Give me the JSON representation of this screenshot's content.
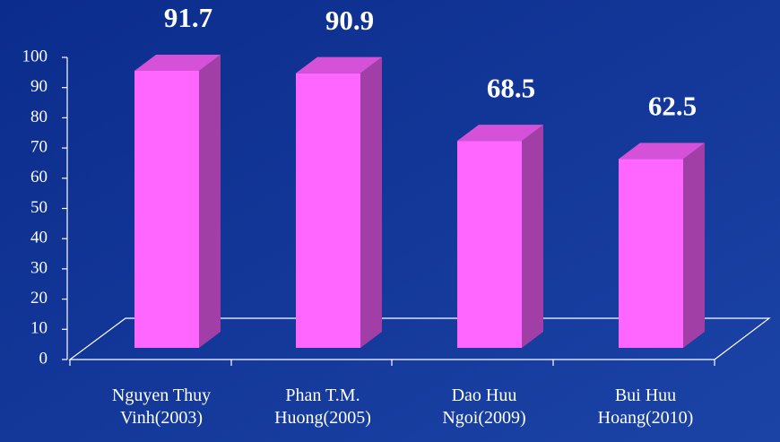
{
  "chart_data": {
    "type": "bar3d",
    "categories": [
      [
        "Nguyen Thuy",
        "Vinh(2003)"
      ],
      [
        "Phan T.M.",
        "Huong(2005)"
      ],
      [
        "Dao Huu",
        "Ngoi(2009)"
      ],
      [
        "Bui Huu",
        "Hoang(2010)"
      ]
    ],
    "values": [
      91.7,
      90.9,
      68.5,
      62.5
    ],
    "color": "#ff66ff",
    "ylim": [
      0,
      100
    ],
    "yticks": [
      0,
      10,
      20,
      30,
      40,
      50,
      60,
      70,
      80,
      90,
      100
    ]
  }
}
